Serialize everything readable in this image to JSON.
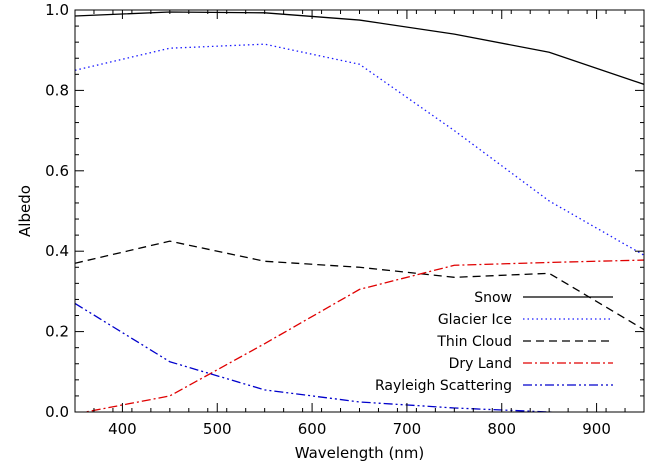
{
  "chart_data": {
    "type": "line",
    "title": "",
    "xlabel": "Wavelength (nm)",
    "ylabel": "Albedo",
    "xlim": [
      350,
      950
    ],
    "ylim": [
      0.0,
      1.0
    ],
    "xticks": [
      400,
      500,
      600,
      700,
      800,
      900
    ],
    "xtick_labels": [
      "400",
      "500",
      "600",
      "700",
      "800",
      "900"
    ],
    "yticks": [
      0.0,
      0.2,
      0.4,
      0.6,
      0.8,
      1.0
    ],
    "ytick_labels": [
      "0.0",
      "0.2",
      "0.4",
      "0.6",
      "0.8",
      "1.0"
    ],
    "grid": false,
    "legend_position": "bottom-right",
    "series": [
      {
        "name": "Snow",
        "color": "#000000",
        "dash": "solid",
        "x": [
          350,
          450,
          550,
          650,
          750,
          850,
          950
        ],
        "y": [
          0.985,
          0.995,
          0.993,
          0.975,
          0.94,
          0.895,
          0.815
        ]
      },
      {
        "name": "Glacier Ice",
        "color": "#1a1aff",
        "dash": "dotted",
        "x": [
          350,
          450,
          550,
          650,
          750,
          850,
          950
        ],
        "y": [
          0.85,
          0.905,
          0.915,
          0.865,
          0.7,
          0.525,
          0.39
        ]
      },
      {
        "name": "Thin Cloud",
        "color": "#000000",
        "dash": "dashed",
        "x": [
          350,
          450,
          550,
          650,
          750,
          850,
          950
        ],
        "y": [
          0.37,
          0.425,
          0.375,
          0.36,
          0.335,
          0.345,
          0.205
        ]
      },
      {
        "name": "Dry Land",
        "color": "#e00000",
        "dash": "dashdot",
        "x": [
          350,
          450,
          550,
          650,
          750,
          850,
          950
        ],
        "y": [
          -0.005,
          0.04,
          0.17,
          0.305,
          0.365,
          0.372,
          0.378
        ]
      },
      {
        "name": "Rayleigh Scattering",
        "color": "#0000cc",
        "dash": "dashdotdot",
        "x": [
          350,
          450,
          550,
          650,
          750,
          850,
          950
        ],
        "y": [
          0.27,
          0.125,
          0.055,
          0.025,
          0.01,
          0.0,
          -0.005
        ]
      }
    ]
  }
}
